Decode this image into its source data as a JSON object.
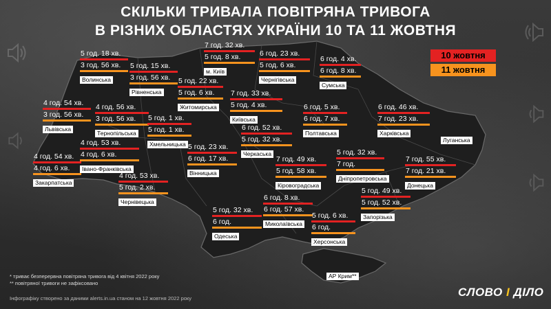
{
  "title": {
    "line1": "СКІЛЬКИ ТРИВАЛА ПОВІТРЯНА ТРИВОГА",
    "line2": "В РІЗНИХ ОБЛАСТЯХ УКРАЇНИ 10 ТА 11 ЖОВТНЯ"
  },
  "legend": {
    "oct10": "10 жовтня",
    "oct11": "11 жовтня"
  },
  "colors": {
    "oct10": "#e32222",
    "oct11": "#f7931e",
    "map_fill": "#1e1e1e",
    "map_stroke": "#6a6a6a"
  },
  "regions": [
    {
      "id": "volynska",
      "name": "Волинська",
      "d10": "5 год. 18 хв.",
      "d11": "3 год. 56 хв."
    },
    {
      "id": "rivnenska",
      "name": "Рівненська",
      "d10": "5 год. 15 хв.",
      "d11": "3 год. 56 хв."
    },
    {
      "id": "kyiv-city",
      "name": "м. Київ",
      "d10": "7 год. 32 хв.",
      "d11": "5 год. 8 хв."
    },
    {
      "id": "chernihivska",
      "name": "Чернігівська",
      "d10": "6 год. 23 хв.",
      "d11": "5 год. 6 хв."
    },
    {
      "id": "sumska",
      "name": "Сумська",
      "d10": "6 год. 4 хв.",
      "d11": "6 год. 8 хв."
    },
    {
      "id": "zhytomyrska",
      "name": "Житомирська",
      "d10": "5 год. 22 хв.",
      "d11": "5 год. 6 хв."
    },
    {
      "id": "kyivska",
      "name": "Київська",
      "d10": "7 год. 33 хв.",
      "d11": "5 год. 4 хв."
    },
    {
      "id": "lvivska",
      "name": "Львівська",
      "d10": "4 год. 54 хв.",
      "d11": "3 год. 56 хв."
    },
    {
      "id": "ternopilska",
      "name": "Тернопільська",
      "d10": "4 год. 56 хв.",
      "d11": "3 год. 56 хв."
    },
    {
      "id": "khmelnytska",
      "name": "Хмельницька",
      "d10": "5 год. 1 хв.",
      "d11": "5 год. 1 хв."
    },
    {
      "id": "poltavska",
      "name": "Полтавська",
      "d10": "6 год. 5 хв.",
      "d11": "6 год. 7 хв."
    },
    {
      "id": "kharkivska",
      "name": "Харківська",
      "d10": "6 год. 46 хв.",
      "d11": "7 год. 23 хв."
    },
    {
      "id": "luhanska",
      "name": "Луганська",
      "d10": "",
      "d11": ""
    },
    {
      "id": "cherkaska",
      "name": "Черкаська",
      "d10": "6 год. 52 хв.",
      "d11": "5 год. 32 хв."
    },
    {
      "id": "ivano-frankivska",
      "name": "Івано-Франківська",
      "d10": "4 год. 53 хв.",
      "d11": "4 год. 6 хв."
    },
    {
      "id": "zakarpatska",
      "name": "Закарпатська",
      "d10": "4 год. 54 хв.",
      "d11": "4 год. 6 хв."
    },
    {
      "id": "vinnytska",
      "name": "Вінницька",
      "d10": "5 год. 23 хв.",
      "d11": "6 год. 17 хв."
    },
    {
      "id": "kirovohradska",
      "name": "Кіровоградська",
      "d10": "7 год. 49 хв.",
      "d11": "5 год. 58 хв."
    },
    {
      "id": "dnipropetrovska",
      "name": "Дніпропетровська",
      "d10": "5 год. 32 хв.",
      "d11": "7 год."
    },
    {
      "id": "donetska",
      "name": "Донецька",
      "d10": "7 год. 55 хв.",
      "d11": "7 год. 21 хв."
    },
    {
      "id": "chernivetska",
      "name": "Чернівецька",
      "d10": "4 год. 53 хв.",
      "d11": "5 год. 2 хв."
    },
    {
      "id": "zaporizka",
      "name": "Запорізька",
      "d10": "5 год. 49 хв.",
      "d11": "5 год. 52 хв."
    },
    {
      "id": "odeska",
      "name": "Одеська",
      "d10": "5 год. 32 хв.",
      "d11": "6 год."
    },
    {
      "id": "mykolaivska",
      "name": "Миколаївська",
      "d10": "6 год. 8 хв.",
      "d11": "6 год. 57 хв."
    },
    {
      "id": "khersonska",
      "name": "Херсонська",
      "d10": "5 год. 6 хв.",
      "d11": "6 год."
    },
    {
      "id": "crimea",
      "name": "АР Крим**",
      "d10": "",
      "d11": ""
    }
  ],
  "notes": {
    "n1": "* триває безперервна повітряна тривога від 4 квітня 2022 року",
    "n2": "** повітряної тривоги не зафіксовано"
  },
  "source": "Інфографіку створено за даними alerts.in.ua станом на 12 жовтня 2022 року",
  "logo": {
    "part1": "СЛОВО",
    "part2": "І",
    "part3": "ДІЛО"
  },
  "icons": [
    "speaker-icon"
  ]
}
